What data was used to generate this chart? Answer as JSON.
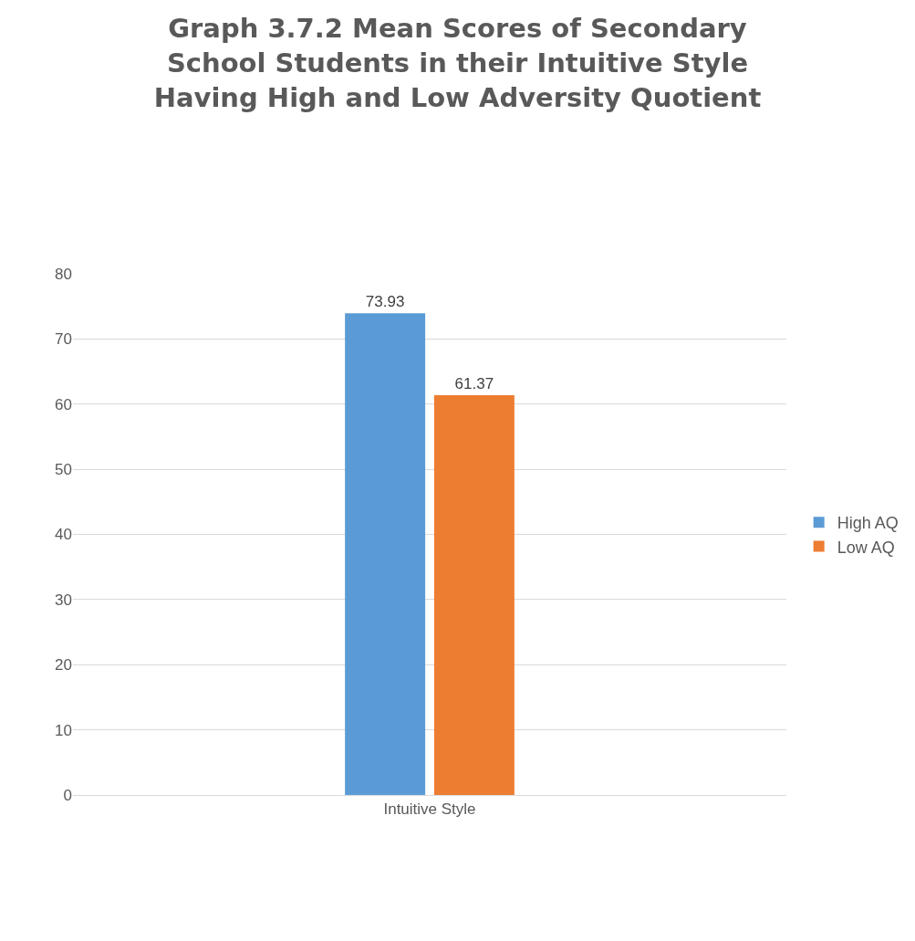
{
  "chart_data": {
    "type": "bar",
    "title": "Graph 3.7.2 Mean Scores of Secondary School Students in their Intuitive Style Having High and Low Adversity Quotient",
    "categories": [
      "Intuitive Style"
    ],
    "series": [
      {
        "name": "High AQ",
        "color": "#5b9bd5",
        "values": [
          73.93
        ]
      },
      {
        "name": "Low AQ",
        "color": "#ed7d31",
        "values": [
          61.37
        ]
      }
    ],
    "ylim": [
      0,
      80
    ],
    "yticks": [
      0,
      10,
      20,
      30,
      40,
      50,
      60,
      70,
      80
    ],
    "grid": "y",
    "legend": "right",
    "data_labels": true
  }
}
